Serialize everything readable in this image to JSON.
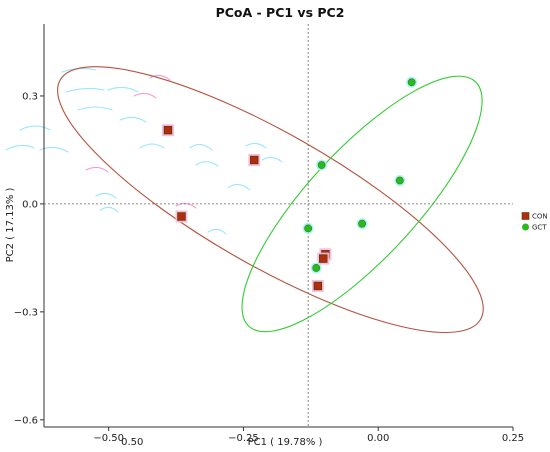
{
  "chart_data": {
    "type": "scatter",
    "title": "PCoA - PC1 vs PC2",
    "xlabel": "PC1 ( 19.78% )",
    "ylabel": "PC2 ( 17.13% )",
    "xlim": [
      -0.62,
      0.25
    ],
    "ylim": [
      -0.62,
      0.5
    ],
    "x_ticks": [
      -0.5,
      -0.25,
      0.0,
      0.25
    ],
    "x_tick_labels": [
      "−0.50",
      "−0.25",
      "0.00",
      "0.25"
    ],
    "y_ticks": [
      0.3,
      0.0,
      -0.3,
      -0.6
    ],
    "y_tick_labels": [
      "0.3",
      "0.0",
      "−0.3",
      "−0.6"
    ],
    "x_extra_tick": {
      "x": -0.38,
      "label": "0.50"
    },
    "reference_lines": {
      "x": -0.13,
      "y": 0.0
    },
    "grid": false,
    "legend_position": "right",
    "series": [
      {
        "name": "CON",
        "color": "#b22d0f",
        "marker": "square",
        "points": [
          {
            "x": -0.39,
            "y": 0.205
          },
          {
            "x": -0.23,
            "y": 0.122
          },
          {
            "x": -0.365,
            "y": -0.035
          },
          {
            "x": -0.098,
            "y": -0.14
          },
          {
            "x": -0.102,
            "y": -0.152
          },
          {
            "x": -0.112,
            "y": -0.228
          }
        ]
      },
      {
        "name": "GCT",
        "color": "#2eb81f",
        "marker": "circle",
        "points": [
          {
            "x": 0.062,
            "y": 0.338
          },
          {
            "x": -0.105,
            "y": 0.108
          },
          {
            "x": 0.04,
            "y": 0.065
          },
          {
            "x": -0.13,
            "y": -0.068
          },
          {
            "x": -0.03,
            "y": -0.055
          },
          {
            "x": -0.115,
            "y": -0.178
          }
        ]
      }
    ],
    "ellipses": [
      {
        "series": "CON",
        "color": "#b5533f",
        "center": [
          -0.2,
          0.012
        ],
        "major_endpoints": [
          [
            -0.59,
            0.345
          ],
          [
            0.19,
            -0.32
          ]
        ],
        "minor_endpoints": [
          [
            -0.27,
            -0.14
          ],
          [
            -0.13,
            0.165
          ]
        ]
      },
      {
        "series": "GCT",
        "color": "#33cc33",
        "center": [
          -0.03,
          0.0
        ],
        "major_endpoints": [
          [
            0.18,
            0.34
          ],
          [
            -0.24,
            -0.34
          ]
        ],
        "minor_endpoints": [
          [
            -0.123,
            0.058
          ],
          [
            0.063,
            -0.058
          ]
        ]
      }
    ]
  }
}
